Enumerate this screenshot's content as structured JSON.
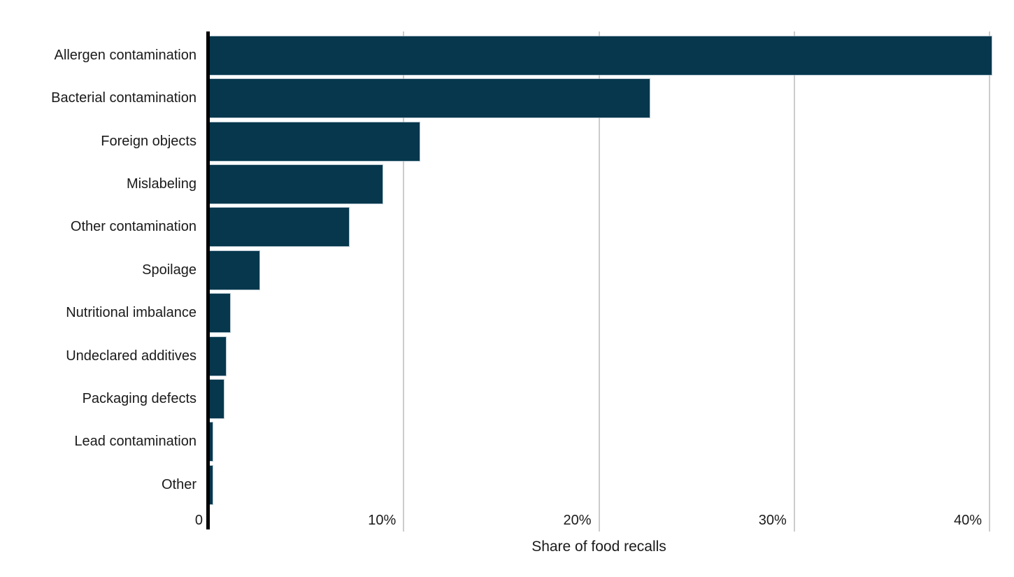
{
  "page": {
    "background_color": "#ffffff"
  },
  "chart_data": {
    "type": "bar",
    "orientation": "horizontal",
    "title": "",
    "xlabel": "Share of food recalls",
    "ylabel": "",
    "categories": [
      "Allergen contamination",
      "Bacterial contamination",
      "Foreign objects",
      "Mislabeling",
      "Other contamination",
      "Spoilage",
      "Nutritional imbalance",
      "Undeclared additives",
      "Packaging defects",
      "Lead contamination",
      "Other"
    ],
    "values": [
      40.1,
      22.6,
      10.8,
      8.9,
      7.2,
      2.6,
      1.1,
      0.9,
      0.8,
      0.2,
      0.2
    ],
    "value_unit": "%",
    "xlim": [
      0,
      41
    ],
    "xticks": [
      {
        "value": 0,
        "label": "0"
      },
      {
        "value": 10,
        "label": "10%"
      },
      {
        "value": 20,
        "label": "20%"
      },
      {
        "value": 30,
        "label": "30%"
      },
      {
        "value": 40,
        "label": "40%"
      }
    ],
    "grid": "vertical-only",
    "legend": "none",
    "colors": {
      "bar_fill": "#06374d",
      "bar_edge": "#9db4c0",
      "axis_line": "#000000",
      "gridline": "#cccccc",
      "text": "#1a1a1a"
    }
  }
}
